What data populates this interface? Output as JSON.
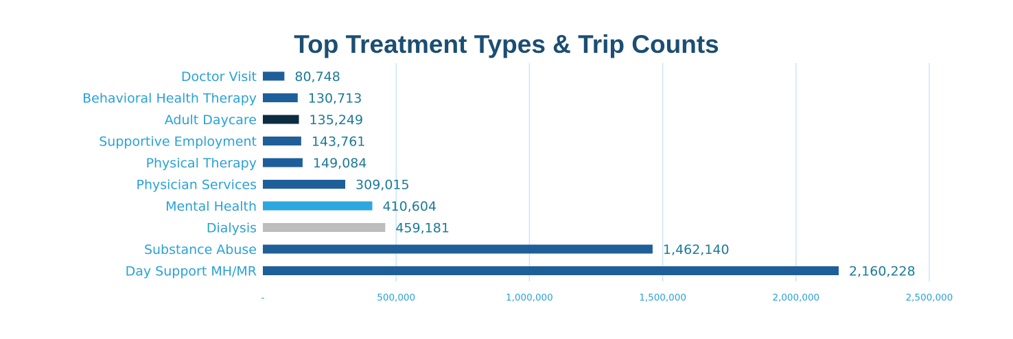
{
  "chart_data": {
    "type": "bar",
    "orientation": "horizontal",
    "title": "Top Treatment Types & Trip Counts",
    "categories": [
      "Doctor Visit",
      "Behavioral Health Therapy",
      "Adult Daycare",
      "Supportive Employment",
      "Physical Therapy",
      "Physician Services",
      "Mental Health",
      "Dialysis",
      "Substance Abuse",
      "Day Support MH/MR"
    ],
    "values": [
      80748,
      130713,
      135249,
      143761,
      149084,
      309015,
      410604,
      459181,
      1462140,
      2160228
    ],
    "data_labels": [
      "80,748",
      "130,713",
      "135,249",
      "143,761",
      "149,084",
      "309,015",
      "410,604",
      "459,181",
      "1,462,140",
      "2,160,228"
    ],
    "bar_colors": [
      "#1f5f99",
      "#1f5f99",
      "#0c2d3f",
      "#1f5f99",
      "#1f5f99",
      "#1f5f99",
      "#2ea6de",
      "#bdbdbd",
      "#1f5f99",
      "#1f5f99"
    ],
    "xlim": [
      0,
      2500000
    ],
    "xticks": [
      0,
      500000,
      1000000,
      1500000,
      2000000,
      2500000
    ],
    "xtick_labels": [
      "-",
      "500,000",
      "1,000,000",
      "1,500,000",
      "2,000,000",
      "2,500,000"
    ],
    "xlabel": "",
    "ylabel": "",
    "grid": true,
    "legend": "none"
  }
}
